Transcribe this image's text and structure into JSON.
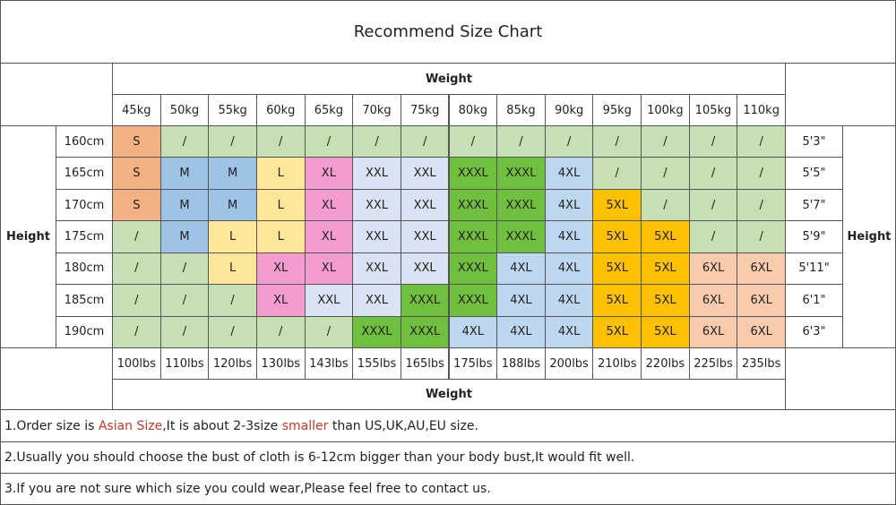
{
  "title": "Recommend Size Chart",
  "weight_header": "Weight",
  "height_label": "Height",
  "weights_kg": [
    "45kg",
    "50kg",
    "55kg",
    "60kg",
    "65kg",
    "70kg",
    "75kg",
    "80kg",
    "85kg",
    "90kg",
    "95kg",
    "100kg",
    "105kg",
    "110kg"
  ],
  "weights_lbs": [
    "100lbs",
    "110lbs",
    "120lbs",
    "130lbs",
    "143lbs",
    "155lbs",
    "165lbs",
    "175lbs",
    "188lbs",
    "200lbs",
    "210lbs",
    "220lbs",
    "225lbs",
    "235lbs"
  ],
  "rows": [
    {
      "height_cm": "160cm",
      "height_ft": "5'3\"",
      "sizes": [
        "S",
        "/",
        "/",
        "/",
        "/",
        "/",
        "/",
        "/",
        "/",
        "/",
        "/",
        "/",
        "/",
        "/"
      ]
    },
    {
      "height_cm": "165cm",
      "height_ft": "5'5\"",
      "sizes": [
        "S",
        "M",
        "M",
        "L",
        "XL",
        "XXL",
        "XXL",
        "XXXL",
        "XXXL",
        "4XL",
        "/",
        "/",
        "/",
        "/"
      ]
    },
    {
      "height_cm": "170cm",
      "height_ft": "5'7\"",
      "sizes": [
        "S",
        "M",
        "M",
        "L",
        "XL",
        "XXL",
        "XXL",
        "XXXL",
        "XXXL",
        "4XL",
        "5XL",
        "/",
        "/",
        "/"
      ]
    },
    {
      "height_cm": "175cm",
      "height_ft": "5'9\"",
      "sizes": [
        "/",
        "M",
        "L",
        "L",
        "XL",
        "XXL",
        "XXL",
        "XXXL",
        "XXXL",
        "4XL",
        "5XL",
        "5XL",
        "/",
        "/"
      ]
    },
    {
      "height_cm": "180cm",
      "height_ft": "5'11\"",
      "sizes": [
        "/",
        "/",
        "L",
        "XL",
        "XL",
        "XXL",
        "XXL",
        "XXXL",
        "4XL",
        "4XL",
        "5XL",
        "5XL",
        "6XL",
        "6XL"
      ]
    },
    {
      "height_cm": "185cm",
      "height_ft": "6'1\"",
      "sizes": [
        "/",
        "/",
        "/",
        "XL",
        "XXL",
        "XXL",
        "XXXL",
        "XXXL",
        "4XL",
        "4XL",
        "5XL",
        "5XL",
        "6XL",
        "6XL"
      ]
    },
    {
      "height_cm": "190cm",
      "height_ft": "6'3\"",
      "sizes": [
        "/",
        "/",
        "/",
        "/",
        "/",
        "XXXL",
        "XXXL",
        "4XL",
        "4XL",
        "4XL",
        "5XL",
        "5XL",
        "6XL",
        "6XL"
      ]
    }
  ],
  "size_colors": {
    "/": "#c6e0b4",
    "S": "#f4b183",
    "M": "#9dc3e6",
    "L": "#ffe699",
    "XL": "#f49ccf",
    "XXL": "#dae3f3",
    "XXXL": "#70bf3f",
    "4XL": "#bdd7ee",
    "5XL": "#ffc000",
    "6XL": "#f8cbad"
  },
  "notes": [
    {
      "parts": [
        {
          "text": "1.Order size is ",
          "color": "#222222"
        },
        {
          "text": "Asian Size",
          "color": "#c0392b"
        },
        {
          "text": ",It is about 2-3size ",
          "color": "#222222"
        },
        {
          "text": "smaller",
          "color": "#c0392b"
        },
        {
          "text": " than US,UK,AU,EU size.",
          "color": "#222222"
        }
      ]
    },
    {
      "parts": [
        {
          "text": "2.Usually you should choose the bust of cloth is 6-12cm bigger than your body bust,It would fit well.",
          "color": "#222222"
        }
      ]
    },
    {
      "parts": [
        {
          "text": "3.If you are not sure which size you could wear,Please feel free to contact us.",
          "color": "#222222"
        }
      ]
    }
  ]
}
